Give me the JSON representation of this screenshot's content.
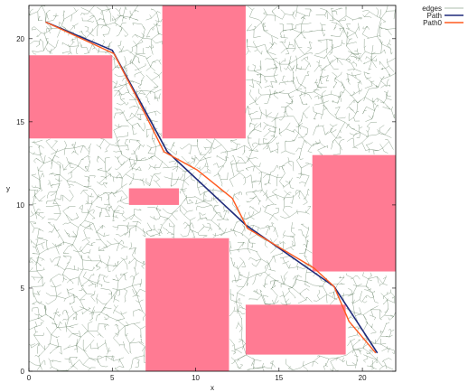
{
  "chart_data": {
    "type": "line",
    "title": "",
    "xlabel": "x",
    "ylabel": "y",
    "xlim": [
      0,
      22
    ],
    "ylim": [
      0,
      22
    ],
    "xticks": [
      0,
      5,
      10,
      15,
      20
    ],
    "yticks": [
      0,
      5,
      10,
      15,
      20
    ],
    "grid": false,
    "legend_position": "outside-top-right",
    "obstacle_color": "#ff7b93",
    "obstacles": [
      {
        "x0": 0,
        "y0": 14,
        "x1": 5,
        "y1": 19
      },
      {
        "x0": 8,
        "y0": 14,
        "x1": 13,
        "y1": 22
      },
      {
        "x0": 6,
        "y0": 10,
        "x1": 9,
        "y1": 11
      },
      {
        "x0": 7,
        "y0": 0,
        "x1": 12,
        "y1": 8
      },
      {
        "x0": 17,
        "y0": 6,
        "x1": 22,
        "y1": 13
      },
      {
        "x0": 13,
        "y0": 1,
        "x1": 19,
        "y1": 4
      }
    ],
    "tree_root": [
      1,
      21
    ],
    "series": [
      {
        "name": "edges",
        "color": "#5d7a5d",
        "style": "tree-edges"
      },
      {
        "name": "Path",
        "color": "#1f2a7a",
        "points": [
          [
            1,
            21
          ],
          [
            5,
            19.3
          ],
          [
            8.3,
            13.2
          ],
          [
            13,
            8.8
          ],
          [
            18.3,
            5.1
          ],
          [
            20.9,
            1.1
          ]
        ]
      },
      {
        "name": "Path0",
        "color": "#ff5a1f",
        "points": [
          [
            1,
            21
          ],
          [
            5.1,
            19.1
          ],
          [
            6.5,
            16.4
          ],
          [
            8.1,
            13.2
          ],
          [
            10.1,
            12.1
          ],
          [
            12.2,
            10.4
          ],
          [
            13.1,
            8.6
          ],
          [
            15.1,
            7.4
          ],
          [
            17.1,
            6.2
          ],
          [
            18.3,
            5.1
          ],
          [
            19.2,
            3.0
          ],
          [
            20.8,
            1.1
          ]
        ]
      }
    ]
  }
}
